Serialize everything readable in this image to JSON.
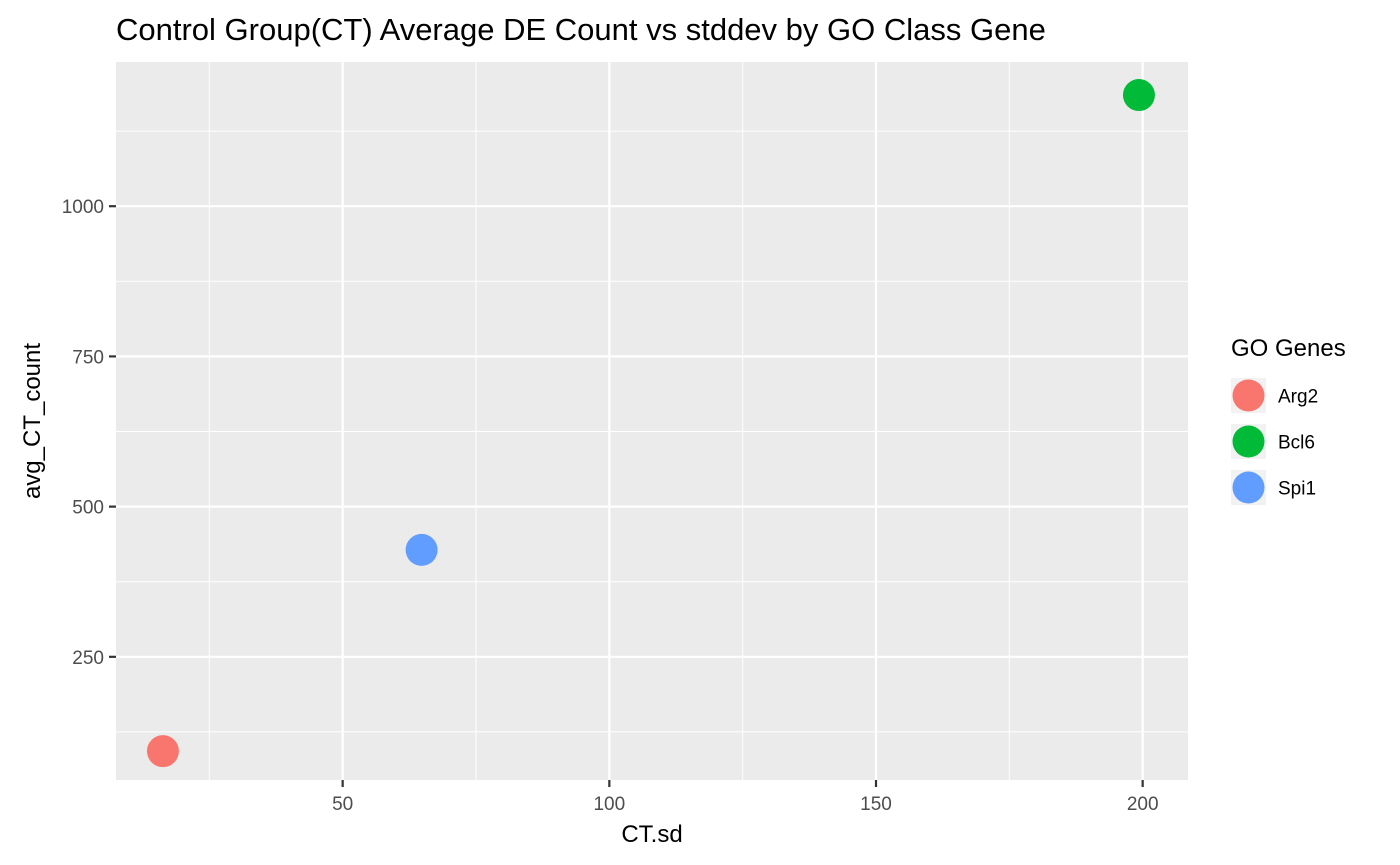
{
  "chart_data": {
    "type": "scatter",
    "title": "Control Group(CT) Average DE Count vs stddev by GO Class Gene",
    "xlabel": "CT.sd",
    "ylabel": "avg_CT_count",
    "xlim": [
      7.5,
      208.5
    ],
    "ylim": [
      45,
      1240
    ],
    "x_ticks": [
      50,
      100,
      150,
      200
    ],
    "x_minor_ticks": [
      25,
      75,
      125,
      175
    ],
    "y_ticks": [
      250,
      500,
      750,
      1000
    ],
    "y_minor_ticks": [
      125,
      375,
      625,
      875,
      1125
    ],
    "x_tick_labels": [
      "50",
      "100",
      "150",
      "200"
    ],
    "y_tick_labels": [
      "250",
      "500",
      "750",
      "1000"
    ],
    "grid": true,
    "legend_position": "right",
    "legend_title": "GO Genes",
    "series": [
      {
        "name": "Arg2",
        "color": "#F8766D",
        "points": [
          {
            "x": 16.3,
            "y": 93
          }
        ]
      },
      {
        "name": "Bcl6",
        "color": "#00BA38",
        "points": [
          {
            "x": 199.3,
            "y": 1185
          }
        ]
      },
      {
        "name": "Spi1",
        "color": "#619CFF",
        "points": [
          {
            "x": 64.8,
            "y": 428
          }
        ]
      }
    ]
  }
}
